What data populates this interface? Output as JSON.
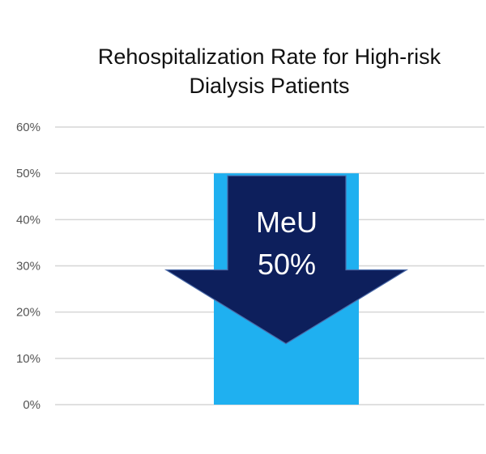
{
  "chart_data": {
    "type": "bar",
    "title_lines": [
      "Rehospitalization Rate for High-risk",
      "Dialysis Patients"
    ],
    "categories": [
      ""
    ],
    "values": [
      50
    ],
    "ylim": [
      0,
      60
    ],
    "yticks": [
      0,
      10,
      20,
      30,
      40,
      50,
      60
    ],
    "ytick_labels": [
      "0%",
      "10%",
      "20%",
      "30%",
      "40%",
      "50%",
      "60%"
    ],
    "grid": true,
    "legend": "none",
    "bar_color": "#1fb0f0",
    "arrow_color": "#0d1f5c",
    "annotation": {
      "lines": [
        "MeU",
        "50%"
      ],
      "top_value": 50,
      "shaft_bottom_value": 30,
      "tip_value": 13
    }
  }
}
